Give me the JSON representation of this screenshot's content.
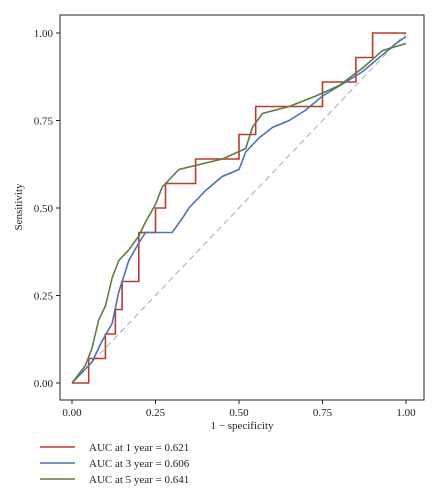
{
  "chart_data": {
    "type": "line",
    "xlabel": "1 − specificity",
    "ylabel": "Sensitivity",
    "xlim": [
      0,
      1
    ],
    "ylim": [
      0,
      1
    ],
    "xticks": [
      "0.00",
      "0.25",
      "0.50",
      "0.75",
      "1.00"
    ],
    "yticks": [
      "0.00",
      "0.25",
      "0.50",
      "0.75",
      "1.00"
    ],
    "grid": false,
    "legend_position": "bottom-left",
    "reference_line": {
      "style": "dashed",
      "color": "#aaaaaa"
    },
    "series": [
      {
        "name": "AUC at 1 year = 0.621",
        "color": "#c0392b",
        "points": [
          [
            0,
            0
          ],
          [
            0.05,
            0
          ],
          [
            0.05,
            0.07
          ],
          [
            0.1,
            0.07
          ],
          [
            0.1,
            0.14
          ],
          [
            0.13,
            0.14
          ],
          [
            0.13,
            0.21
          ],
          [
            0.15,
            0.21
          ],
          [
            0.15,
            0.29
          ],
          [
            0.2,
            0.29
          ],
          [
            0.2,
            0.43
          ],
          [
            0.25,
            0.43
          ],
          [
            0.25,
            0.5
          ],
          [
            0.28,
            0.5
          ],
          [
            0.28,
            0.57
          ],
          [
            0.37,
            0.57
          ],
          [
            0.37,
            0.64
          ],
          [
            0.5,
            0.64
          ],
          [
            0.5,
            0.71
          ],
          [
            0.55,
            0.71
          ],
          [
            0.55,
            0.79
          ],
          [
            0.75,
            0.79
          ],
          [
            0.75,
            0.86
          ],
          [
            0.85,
            0.86
          ],
          [
            0.85,
            0.93
          ],
          [
            0.9,
            0.93
          ],
          [
            0.9,
            1.0
          ],
          [
            1.0,
            1.0
          ]
        ]
      },
      {
        "name": "AUC at 3 year = 0.606",
        "color": "#4a72b8",
        "points": [
          [
            0,
            0
          ],
          [
            0.03,
            0.03
          ],
          [
            0.06,
            0.06
          ],
          [
            0.09,
            0.12
          ],
          [
            0.12,
            0.17
          ],
          [
            0.14,
            0.26
          ],
          [
            0.17,
            0.35
          ],
          [
            0.2,
            0.4
          ],
          [
            0.22,
            0.43
          ],
          [
            0.3,
            0.43
          ],
          [
            0.33,
            0.47
          ],
          [
            0.35,
            0.5
          ],
          [
            0.4,
            0.55
          ],
          [
            0.45,
            0.59
          ],
          [
            0.5,
            0.61
          ],
          [
            0.52,
            0.66
          ],
          [
            0.56,
            0.7
          ],
          [
            0.6,
            0.73
          ],
          [
            0.65,
            0.75
          ],
          [
            0.7,
            0.78
          ],
          [
            0.75,
            0.82
          ],
          [
            0.82,
            0.86
          ],
          [
            0.87,
            0.89
          ],
          [
            0.92,
            0.93
          ],
          [
            0.97,
            0.97
          ],
          [
            1.0,
            0.99
          ]
        ]
      },
      {
        "name": "AUC at 5 year = 0.641",
        "color": "#5b7f3e",
        "points": [
          [
            0,
            0
          ],
          [
            0.04,
            0.05
          ],
          [
            0.06,
            0.1
          ],
          [
            0.08,
            0.18
          ],
          [
            0.1,
            0.22
          ],
          [
            0.12,
            0.3
          ],
          [
            0.14,
            0.35
          ],
          [
            0.17,
            0.38
          ],
          [
            0.2,
            0.42
          ],
          [
            0.22,
            0.46
          ],
          [
            0.25,
            0.51
          ],
          [
            0.27,
            0.56
          ],
          [
            0.32,
            0.61
          ],
          [
            0.45,
            0.64
          ],
          [
            0.52,
            0.67
          ],
          [
            0.54,
            0.73
          ],
          [
            0.57,
            0.77
          ],
          [
            0.65,
            0.79
          ],
          [
            0.73,
            0.82
          ],
          [
            0.8,
            0.85
          ],
          [
            0.87,
            0.9
          ],
          [
            0.93,
            0.95
          ],
          [
            1.0,
            0.97
          ]
        ]
      }
    ]
  }
}
